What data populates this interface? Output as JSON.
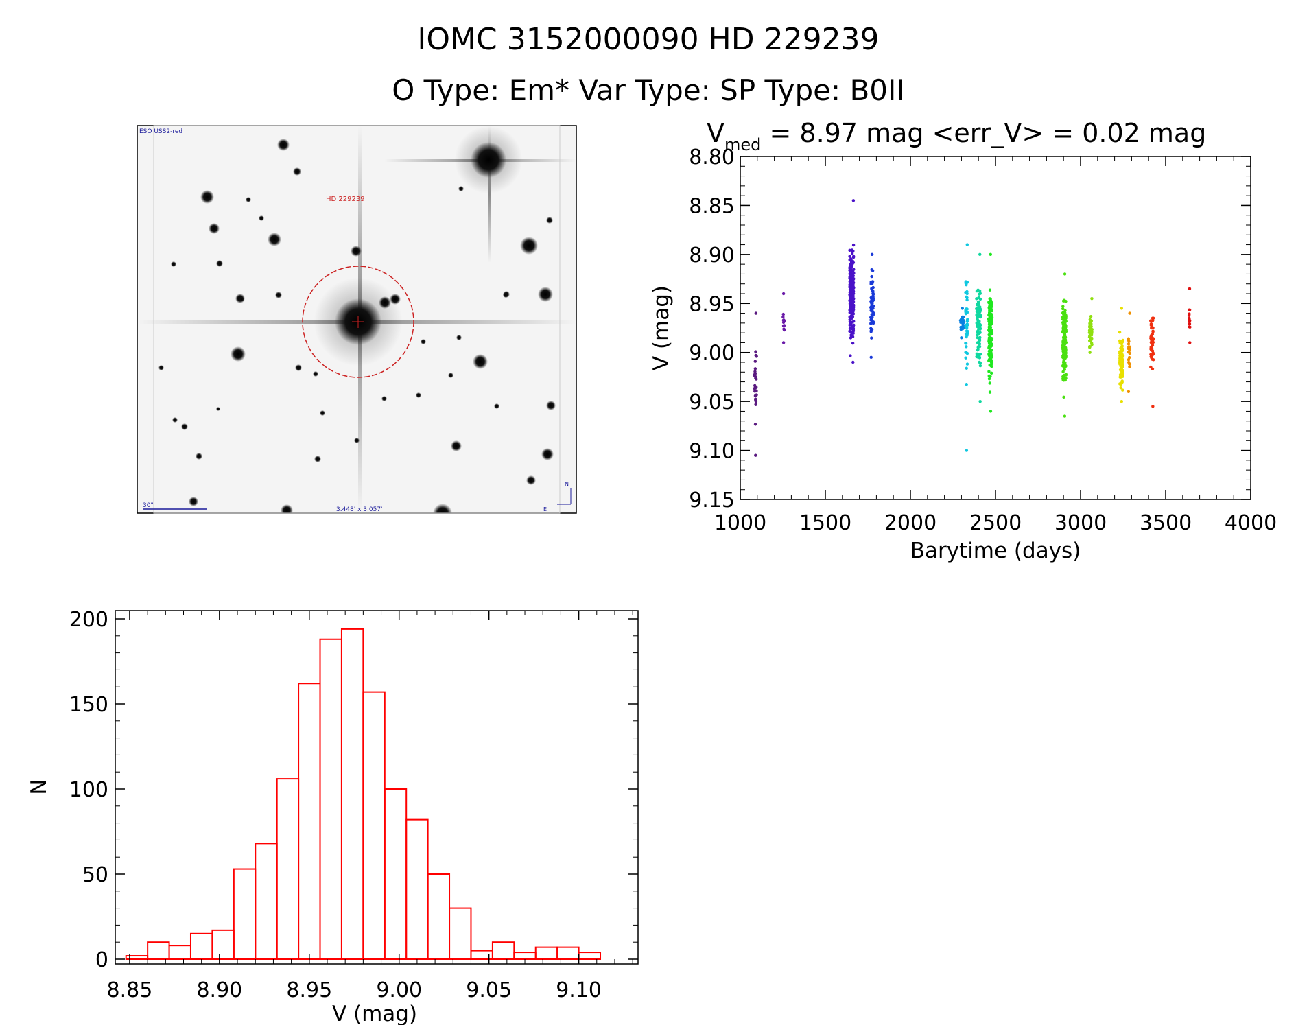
{
  "header": {
    "title": "IOMC 3152000090   HD 229239",
    "subtitle": "O Type: Em*  Var Type:    SP Type: B0II"
  },
  "finder": {
    "survey_label": "ESO USS2-red",
    "target_label": "HD 229239",
    "scale_label": "30\"",
    "fov_label": "3.448' x 3.057'",
    "north_label": "N",
    "east_label": "E"
  },
  "colors": {
    "axis": "#000000",
    "histogram": "#ff0000",
    "target_circle": "#cc2222"
  },
  "chart_data": [
    {
      "type": "scatter",
      "title_main": "V",
      "title_sub": "med",
      "title_rest": " = 8.97 mag <err_V> = 0.02 mag",
      "xlabel": "Barytime (days)",
      "ylabel": "V (mag)",
      "xlim": [
        1000,
        4000
      ],
      "ylim": [
        9.15,
        8.8
      ],
      "xticks": [
        "1000",
        "1500",
        "2000",
        "2500",
        "3000",
        "3500",
        "4000"
      ],
      "yticks": [
        "8.80",
        "8.85",
        "8.90",
        "8.95",
        "9.00",
        "9.05",
        "9.10",
        "9.15"
      ],
      "series": [
        {
          "name": "season1",
          "color": "#5a1a80",
          "x": 1090,
          "xspread": 6,
          "ymin": 8.96,
          "ymax": 9.105,
          "ycenter": 9.03,
          "n": 34
        },
        {
          "name": "season2",
          "color": "#6a1aa8",
          "x": 1255,
          "xspread": 4,
          "ymin": 8.94,
          "ymax": 8.99,
          "ycenter": 8.97,
          "n": 12
        },
        {
          "name": "season3",
          "color": "#4a12c8",
          "x": 1655,
          "xspread": 12,
          "ymin": 8.845,
          "ymax": 9.01,
          "ycenter": 8.94,
          "n": 230
        },
        {
          "name": "season4",
          "color": "#1a3ad8",
          "x": 1775,
          "xspread": 8,
          "ymin": 8.9,
          "ymax": 9.005,
          "ycenter": 8.95,
          "n": 70
        },
        {
          "name": "season5",
          "color": "#0a80e0",
          "x": 2305,
          "xspread": 12,
          "ymin": 8.955,
          "ymax": 8.985,
          "ycenter": 8.97,
          "n": 30
        },
        {
          "name": "season6",
          "color": "#10c8e0",
          "x": 2330,
          "xspread": 6,
          "ymin": 8.89,
          "ymax": 9.1,
          "ycenter": 8.97,
          "n": 45
        },
        {
          "name": "season7",
          "color": "#10d8a0",
          "x": 2400,
          "xspread": 12,
          "ymin": 8.9,
          "ymax": 9.05,
          "ycenter": 8.97,
          "n": 90
        },
        {
          "name": "season8",
          "color": "#20e820",
          "x": 2470,
          "xspread": 10,
          "ymin": 8.9,
          "ymax": 9.06,
          "ycenter": 8.98,
          "n": 160
        },
        {
          "name": "season9",
          "color": "#4ae010",
          "x": 2905,
          "xspread": 10,
          "ymin": 8.92,
          "ymax": 9.065,
          "ycenter": 8.99,
          "n": 170
        },
        {
          "name": "season10",
          "color": "#90e010",
          "x": 3060,
          "xspread": 8,
          "ymin": 8.945,
          "ymax": 9.0,
          "ycenter": 8.98,
          "n": 60
        },
        {
          "name": "season11",
          "color": "#e8e000",
          "x": 3240,
          "xspread": 10,
          "ymin": 8.955,
          "ymax": 9.05,
          "ycenter": 9.01,
          "n": 110
        },
        {
          "name": "season12",
          "color": "#f09000",
          "x": 3285,
          "xspread": 4,
          "ymin": 8.96,
          "ymax": 9.04,
          "ycenter": 9.0,
          "n": 20
        },
        {
          "name": "season13",
          "color": "#f03010",
          "x": 3420,
          "xspread": 8,
          "ymin": 8.965,
          "ymax": 9.055,
          "ycenter": 8.99,
          "n": 60
        },
        {
          "name": "season14",
          "color": "#e01010",
          "x": 3640,
          "xspread": 3,
          "ymin": 8.935,
          "ymax": 8.99,
          "ycenter": 8.965,
          "n": 14
        }
      ]
    },
    {
      "type": "bar",
      "subtype": "histogram",
      "xlabel": "V (mag)",
      "ylabel": "N",
      "xlim": [
        8.842,
        9.133
      ],
      "ylim": [
        0,
        200
      ],
      "xticks": [
        "8.85",
        "8.90",
        "8.95",
        "9.00",
        "9.05",
        "9.10"
      ],
      "yticks": [
        "0",
        "50",
        "100",
        "150",
        "200"
      ],
      "bin_width": 0.012,
      "bin_start": 8.848,
      "values": [
        2,
        10,
        8,
        15,
        17,
        53,
        68,
        106,
        162,
        188,
        194,
        157,
        100,
        82,
        50,
        30,
        5,
        10,
        4,
        7,
        7,
        4
      ]
    }
  ]
}
